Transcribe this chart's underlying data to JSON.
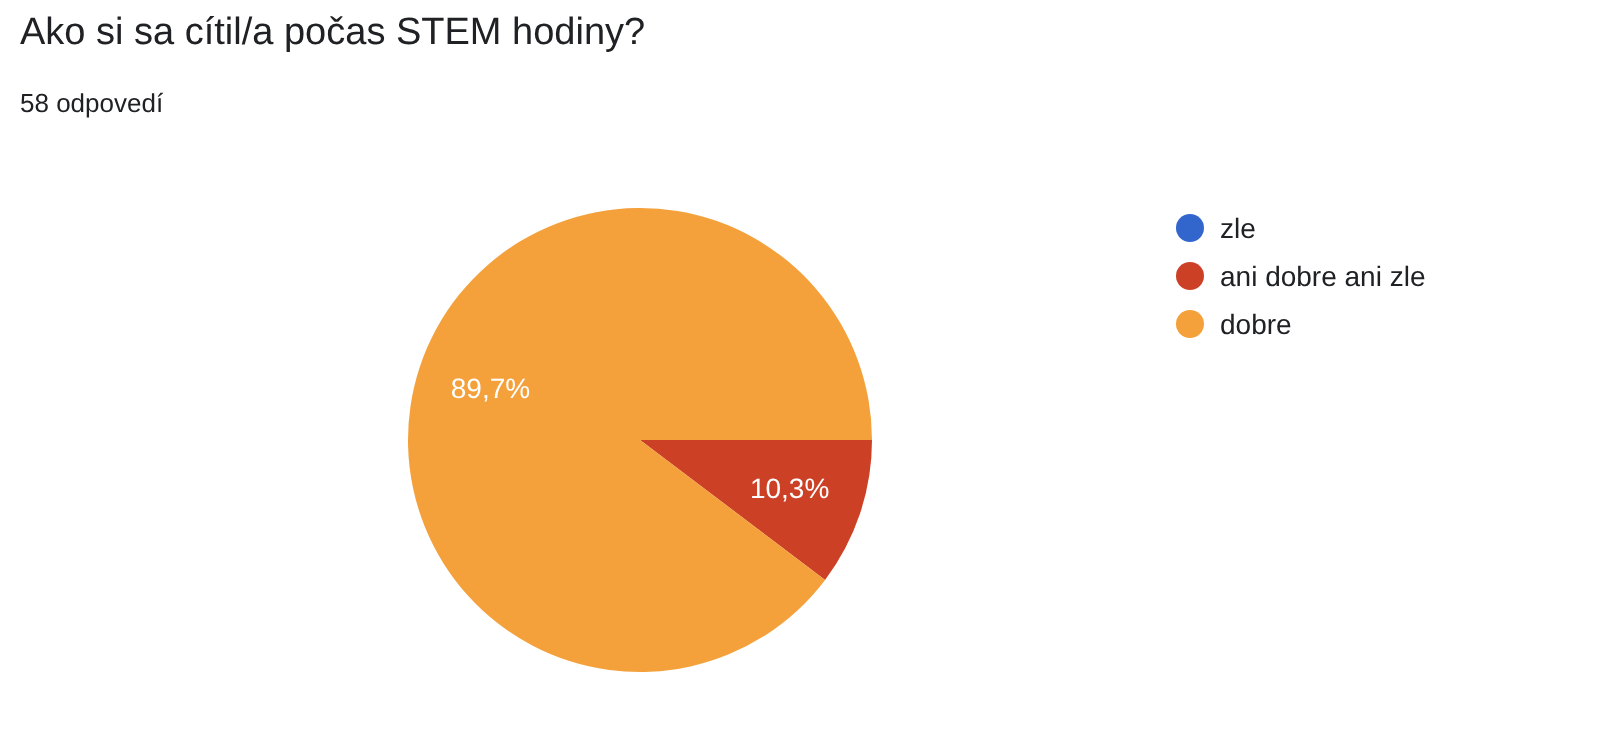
{
  "chart_data": {
    "type": "pie",
    "title": "Ako si sa cítil/a počas STEM hodiny?",
    "subtitle": "58 odpovedí",
    "categories": [
      "zle",
      "ani dobre ani zle",
      "dobre"
    ],
    "values": [
      0,
      10.3,
      89.7
    ],
    "colors": [
      "#3366cc",
      "#cc4125",
      "#f4a13b"
    ],
    "value_labels": [
      null,
      "10,3%",
      "89,7%"
    ],
    "legend": "right"
  }
}
